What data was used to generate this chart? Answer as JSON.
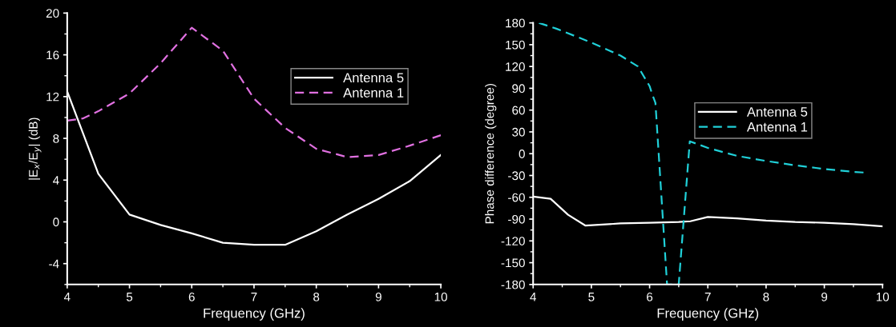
{
  "chart_data": [
    {
      "type": "line",
      "xlabel": "Frequency (GHz)",
      "ylabel": "|E$_{x}$/E$_{y}$| (dB)",
      "xlim": [
        4,
        10
      ],
      "xticks": [
        4,
        5,
        6,
        7,
        8,
        9,
        10
      ],
      "ylim": [
        -6,
        20
      ],
      "yticks": [
        -4,
        0,
        4,
        8,
        12,
        16,
        20
      ],
      "legend": "top right",
      "series": [
        {
          "name": "Antenna 5",
          "color": "#ffffff",
          "line_style": "solid",
          "x": [
            4,
            4.5,
            5,
            5.5,
            6,
            6.5,
            7,
            7.5,
            8,
            8.5,
            9,
            9.5,
            10
          ],
          "values": [
            12.5,
            4.6,
            0.7,
            -0.3,
            -1.1,
            -2.0,
            -2.2,
            -2.2,
            -0.9,
            0.7,
            2.2,
            3.9,
            6.4
          ]
        },
        {
          "name": "Antenna 1",
          "color": "#e070e0",
          "line_style": "dashed",
          "x": [
            4,
            4.25,
            4.5,
            5,
            5.5,
            6,
            6.5,
            7,
            7.5,
            8,
            8.5,
            9,
            9.5,
            10
          ],
          "values": [
            9.7,
            9.9,
            10.6,
            12.3,
            15.2,
            18.6,
            16.4,
            11.8,
            9.0,
            7.0,
            6.2,
            6.4,
            7.3,
            8.3
          ]
        }
      ]
    },
    {
      "type": "line",
      "xlabel": "Frequency (GHz)",
      "ylabel": "Phase difference (degree)",
      "xlim": [
        4,
        10
      ],
      "xticks": [
        4,
        5,
        6,
        7,
        8,
        9,
        10
      ],
      "ylim": [
        -180,
        180
      ],
      "yticks": [
        -180,
        -150,
        -120,
        -90,
        -60,
        -30,
        0,
        30,
        60,
        90,
        120,
        150,
        180
      ],
      "legend": "top",
      "series": [
        {
          "name": "Antenna 5",
          "color": "#ffffff",
          "line_style": "solid",
          "x": [
            4,
            4.3,
            4.6,
            4.9,
            5.5,
            6,
            6.5,
            6.7,
            7,
            7.5,
            8,
            8.5,
            9,
            9.5,
            10
          ],
          "values": [
            -59,
            -62,
            -84,
            -99,
            -96,
            -95,
            -94,
            -93,
            -87,
            -89,
            -92,
            -94,
            -95,
            -97,
            -100
          ]
        },
        {
          "name": "Antenna 1",
          "color": "#20d0d8",
          "line_style": "dashed",
          "x": [
            4.1,
            4.4,
            5,
            5.5,
            5.8,
            6.0,
            6.04,
            6.1,
            6.3,
            6.5,
            6.69,
            7,
            7.5,
            8,
            8.5,
            9,
            9.5,
            9.7
          ],
          "values": [
            180,
            172,
            153,
            135,
            120,
            93,
            83,
            70,
            -180,
            -180,
            17,
            8,
            -3,
            -10,
            -16,
            -21,
            -25,
            -26
          ]
        }
      ]
    }
  ]
}
